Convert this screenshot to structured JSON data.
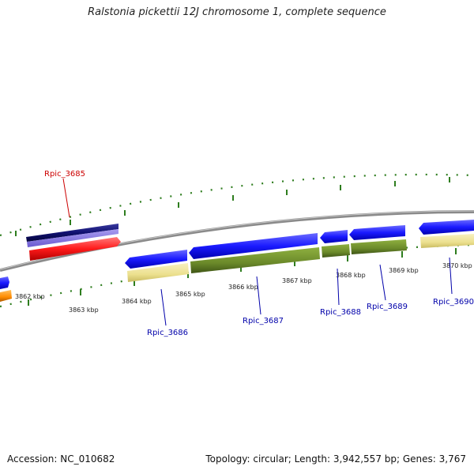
{
  "title": "Ralstonia pickettii 12J chromosome 1, complete sequence",
  "footer": {
    "accession": "Accession: NC_010682",
    "summary": "Topology: circular; Length: 3,942,557 bp; Genes: 3,767"
  },
  "colors": {
    "backbone": "#8a8a8a",
    "tick": "#2e7d1e",
    "cds_blue": "#1a1aff",
    "cds_navy": "#101070",
    "cds_lavender": "#7a6ad8",
    "cds_red": "#ff1a1a",
    "cds_orange": "#ff8c00",
    "gene_khaki": "#efe6a0",
    "gene_olive": "#6b8a2a",
    "label_red": "#cc0000",
    "label_blue": "#0000aa"
  },
  "axis": {
    "unit": "kbp",
    "ticks": [
      "3862 kbp",
      "3863 kbp",
      "3864 kbp",
      "3865 kbp",
      "3866 kbp",
      "3867 kbp",
      "3868 kbp",
      "3869 kbp",
      "3870 kbp"
    ]
  },
  "genes": [
    {
      "id": "Rpic_3685",
      "color": "#cc0000"
    },
    {
      "id": "Rpic_3686",
      "color": "#0000aa"
    },
    {
      "id": "Rpic_3687",
      "color": "#0000aa"
    },
    {
      "id": "Rpic_3688",
      "color": "#0000aa"
    },
    {
      "id": "Rpic_3689",
      "color": "#0000aa"
    },
    {
      "id": "Rpic_3690",
      "color": "#0000aa"
    }
  ]
}
